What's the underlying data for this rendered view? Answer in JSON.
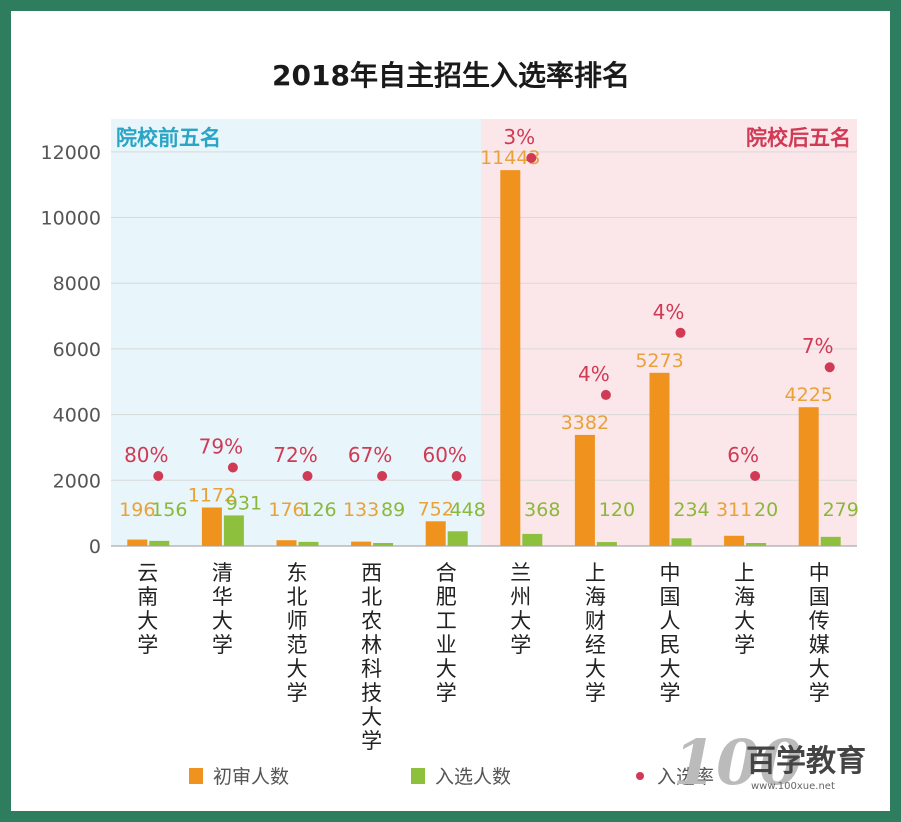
{
  "chart_data": {
    "type": "bar",
    "title": "2018年自主招生入选率排名",
    "zone_labels": {
      "left": "院校前五名",
      "right": "院校后五名"
    },
    "categories": [
      "云南大学",
      "清华大学",
      "东北师范大学",
      "西北农林科技大学",
      "合肥工业大学",
      "兰州大学",
      "上海财经大学",
      "中国人民大学",
      "上海大学",
      "中国传媒大学"
    ],
    "series": [
      {
        "name": "初审人数",
        "color": "#f0921e",
        "values": [
          196,
          1172,
          176,
          133,
          752,
          11443,
          3382,
          5273,
          311,
          4225
        ],
        "labels": [
          "196",
          "1172",
          "176",
          "133",
          "752",
          "11443",
          "3382",
          "5273",
          "311",
          "4225"
        ]
      },
      {
        "name": "入选人数",
        "color": "#8dc03c",
        "values": [
          156,
          931,
          126,
          89,
          448,
          368,
          120,
          234,
          20,
          279
        ],
        "labels": [
          "156",
          "931",
          "126",
          "89",
          "448",
          "368",
          "120",
          "234",
          "20",
          "279"
        ]
      },
      {
        "name": "入选率",
        "color": "#d03a55",
        "type": "scatter",
        "values": [
          80,
          79,
          72,
          67,
          60,
          3,
          4,
          4,
          6,
          7
        ],
        "labels": [
          "80%",
          "79%",
          "72%",
          "67%",
          "60%",
          "3%",
          "4%",
          "4%",
          "6%",
          "7%"
        ]
      }
    ],
    "yticks": [
      "0",
      "2000",
      "4000",
      "6000",
      "8000",
      "10000",
      "12000"
    ],
    "ylim": [
      0,
      13000
    ],
    "grid": true,
    "legend_position": "bottom"
  },
  "watermark": {
    "logo_text": "百学教育",
    "logo_number": "100",
    "url": "www.100xue.net"
  }
}
